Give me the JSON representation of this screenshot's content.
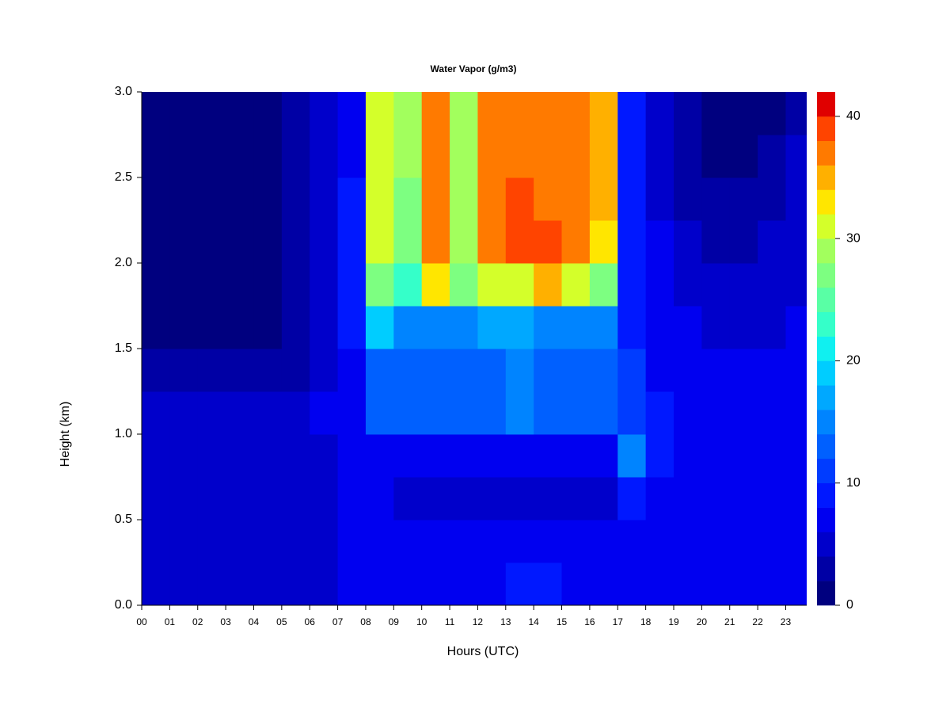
{
  "chart_data": {
    "type": "contour",
    "title": "Water Vapor (g/m3)",
    "x_label": "Hours (UTC)",
    "y_label": "Height (km)",
    "x": [
      0.5,
      1.5,
      2.5,
      3.5,
      4.5,
      5.5,
      6.5,
      7.5,
      8.5,
      9.5,
      10.5,
      11.5,
      12.5,
      13.5,
      14.5,
      15.5,
      16.5,
      17.5,
      18.5,
      19.5,
      20.5,
      21.5,
      22.5,
      23.5
    ],
    "y": [
      0.125,
      0.375,
      0.625,
      0.875,
      1.125,
      1.375,
      1.625,
      1.875,
      2.125,
      2.375,
      2.625,
      2.875
    ],
    "z": [
      [
        5,
        5,
        5,
        5,
        5,
        5,
        5,
        7,
        7,
        7,
        7,
        7,
        7,
        8,
        8,
        7,
        7,
        6,
        6,
        6,
        6,
        6,
        6,
        6
      ],
      [
        5,
        5,
        5,
        5,
        5,
        5,
        5,
        6,
        6,
        6,
        6,
        6,
        6,
        6,
        6,
        6,
        6,
        7,
        6,
        6,
        6,
        6,
        6,
        6
      ],
      [
        5,
        5,
        5,
        5,
        5,
        5,
        5,
        6,
        6,
        5,
        5,
        5,
        5,
        4,
        4,
        5,
        5,
        9,
        7,
        6,
        6,
        6,
        6,
        6
      ],
      [
        5,
        5,
        5,
        5,
        5,
        5,
        5,
        6,
        6,
        6,
        6,
        6,
        6,
        6,
        6,
        6,
        6,
        14,
        8,
        6,
        6,
        6,
        6,
        6
      ],
      [
        4,
        4,
        4,
        4,
        4,
        4,
        6,
        7,
        12,
        12,
        13,
        12,
        12,
        14,
        13,
        12,
        12,
        11,
        8,
        6,
        6,
        6,
        6,
        6
      ],
      [
        2,
        2,
        2,
        2,
        2,
        3,
        5,
        7,
        13,
        12,
        13,
        12,
        13,
        15,
        13,
        13,
        12,
        10,
        7,
        6,
        6,
        6,
        6,
        6
      ],
      [
        1,
        1,
        1,
        1,
        1,
        2,
        5,
        8,
        18,
        14,
        15,
        14,
        16,
        16,
        15,
        15,
        14,
        9,
        7,
        6,
        5,
        5,
        5,
        6
      ],
      [
        1,
        1,
        1,
        1,
        1,
        2,
        5,
        8,
        26,
        22,
        32,
        26,
        30,
        30,
        34,
        30,
        27,
        8,
        6,
        5,
        4,
        4,
        4,
        5
      ],
      [
        1,
        1,
        1,
        1,
        1,
        2,
        5,
        8,
        30,
        26,
        37,
        28,
        36,
        38,
        38,
        37,
        33,
        8,
        6,
        4,
        3,
        3,
        4,
        5
      ],
      [
        1,
        1,
        1,
        1,
        1,
        2,
        5,
        8,
        31,
        27,
        37,
        28,
        36,
        38,
        37,
        36,
        34,
        8,
        5,
        3,
        2,
        2,
        3,
        4
      ],
      [
        1,
        1,
        1,
        1,
        1,
        2,
        5,
        7,
        31,
        28,
        36,
        29,
        36,
        37,
        37,
        36,
        34,
        8,
        5,
        2,
        1,
        1,
        2,
        4
      ],
      [
        1,
        1,
        1,
        1,
        1,
        2,
        5,
        7,
        31,
        28,
        36,
        29,
        36,
        37,
        37,
        36,
        34,
        8,
        4,
        2,
        1,
        1,
        1,
        3
      ]
    ],
    "xlim": [
      0,
      23.75
    ],
    "ylim": [
      0,
      3
    ],
    "xticks": [
      {
        "value": 0,
        "label": "00"
      },
      {
        "value": 1,
        "label": "01"
      },
      {
        "value": 2,
        "label": "02"
      },
      {
        "value": 3,
        "label": "03"
      },
      {
        "value": 4,
        "label": "04"
      },
      {
        "value": 5,
        "label": "05"
      },
      {
        "value": 6,
        "label": "06"
      },
      {
        "value": 7,
        "label": "07"
      },
      {
        "value": 8,
        "label": "08"
      },
      {
        "value": 9,
        "label": "09"
      },
      {
        "value": 10,
        "label": "10"
      },
      {
        "value": 11,
        "label": "11"
      },
      {
        "value": 12,
        "label": "12"
      },
      {
        "value": 13,
        "label": "13"
      },
      {
        "value": 14,
        "label": "14"
      },
      {
        "value": 15,
        "label": "15"
      },
      {
        "value": 16,
        "label": "16"
      },
      {
        "value": 17,
        "label": "17"
      },
      {
        "value": 18,
        "label": "18"
      },
      {
        "value": 19,
        "label": "19"
      },
      {
        "value": 20,
        "label": "20"
      },
      {
        "value": 21,
        "label": "21"
      },
      {
        "value": 22,
        "label": "22"
      },
      {
        "value": 23,
        "label": "23"
      }
    ],
    "yticks": [
      {
        "value": 0,
        "label": "0.0"
      },
      0.5,
      {
        "value": 1,
        "label": "1.0"
      },
      1.5,
      {
        "value": 2,
        "label": "2.0"
      },
      2.5,
      {
        "value": 3,
        "label": "3.0"
      }
    ],
    "levels": [
      0,
      2,
      4,
      6,
      8,
      10,
      12,
      14,
      16,
      18,
      20,
      22,
      24,
      26,
      28,
      30,
      32,
      34,
      36,
      38,
      40,
      42
    ],
    "colors": [
      "#00007f",
      "#0000a5",
      "#0000cb",
      "#0000f0",
      "#0018ff",
      "#003cff",
      "#0060ff",
      "#0084ff",
      "#00a8ff",
      "#00cdff",
      "#10f0f0",
      "#35ffc9",
      "#59ffa5",
      "#7dff81",
      "#a2ff5d",
      "#d4ff2a",
      "#ffe600",
      "#ffb000",
      "#ff7a00",
      "#ff4400",
      "#e00000"
    ],
    "zlim": [
      0,
      42
    ],
    "zticks": [
      0,
      10,
      20,
      30,
      40
    ]
  }
}
